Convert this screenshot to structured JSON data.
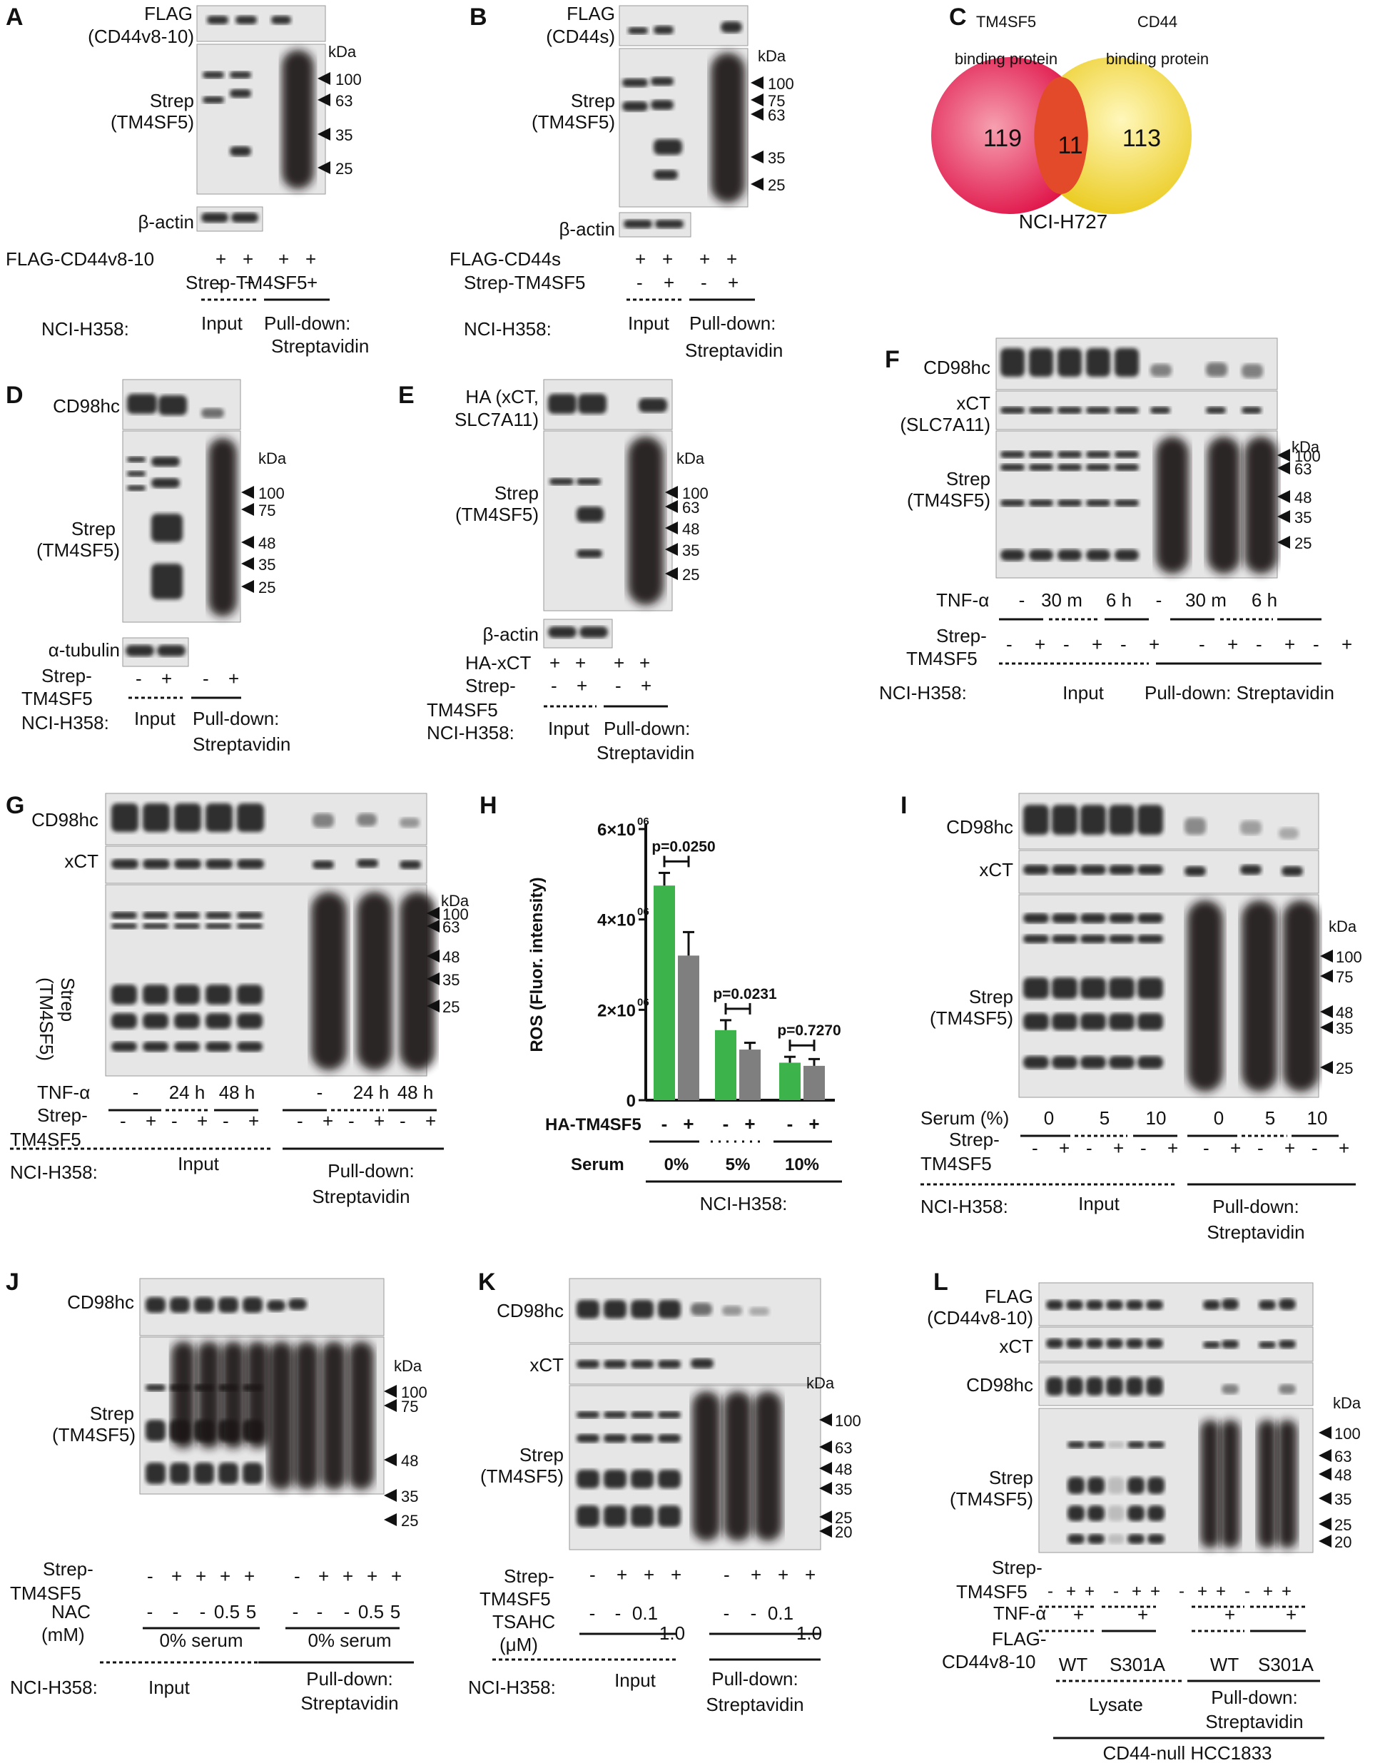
{
  "panelA": {
    "letter": "A",
    "flag": "FLAG",
    "flag2": "(CD44v8-10)",
    "strep": "Strep",
    "strep2": "(TM4SF5)",
    "kda": "kDa",
    "markers": [
      "100",
      "63",
      "35",
      "25"
    ],
    "loading": "β-actin",
    "row1": "FLAG-CD44v8-10",
    "row2": "Strep-TM4SF5",
    "cell": "NCI-H358:",
    "input": "Input",
    "pd": "Pull-down:",
    "sa": "Streptavidin"
  },
  "panelB": {
    "letter": "B",
    "flag": "FLAG",
    "flag2": "(CD44s)",
    "strep": "Strep",
    "strep2": "(TM4SF5)",
    "kda": "kDa",
    "markers": [
      "100",
      "75",
      "63",
      "35",
      "25"
    ],
    "loading": "β-actin",
    "row1": "FLAG-CD44s",
    "row2": "Strep-TM4SF5",
    "cell": "NCI-H358:",
    "input": "Input",
    "pd": "Pull-down:",
    "sa": "Streptavidin"
  },
  "panelC": {
    "letter": "C",
    "left_title1": "TM4SF5",
    "left_title2": "binding protein",
    "right_title1": "CD44",
    "right_title2": "binding protein",
    "left_n": "119",
    "mid_n": "11",
    "right_n": "113",
    "cell": "NCI-H727"
  },
  "panelD": {
    "letter": "D",
    "cd98": "CD98hc",
    "strep": "Strep",
    "strep2": "(TM4SF5)",
    "kda": "kDa",
    "markers": [
      "100",
      "75",
      "48",
      "35",
      "25"
    ],
    "loading": "α-tubulin",
    "row1a": "Strep-",
    "row1b": "TM4SF5",
    "cell": "NCI-H358:",
    "input": "Input",
    "pd": "Pull-down:",
    "sa": "Streptavidin"
  },
  "panelE": {
    "letter": "E",
    "ha": "HA (xCT,",
    "ha2": "SLC7A11)",
    "strep": "Strep",
    "strep2": "(TM4SF5)",
    "kda": "kDa",
    "markers": [
      "100",
      "63",
      "48",
      "35",
      "25"
    ],
    "loading": "β-actin",
    "row1": "HA-xCT",
    "row2a": "Strep-",
    "row2b": "TM4SF5",
    "cell": "NCI-H358:",
    "input": "Input",
    "pd": "Pull-down:",
    "sa": "Streptavidin"
  },
  "panelF": {
    "letter": "F",
    "cd98": "CD98hc",
    "xct": "xCT",
    "xct2": "(SLC7A11)",
    "strep": "Strep",
    "strep2": "(TM4SF5)",
    "kda": "kDa",
    "markers": [
      "100",
      "63",
      "48",
      "35",
      "25"
    ],
    "tnf": "TNF-α",
    "times": [
      "-",
      "30 m",
      "6 h",
      "-",
      "30 m",
      "6 h"
    ],
    "row2a": "Strep-",
    "row2b": "TM4SF5",
    "cell": "NCI-H358:",
    "input": "Input",
    "pd": "Pull-down: Streptavidin"
  },
  "panelG": {
    "letter": "G",
    "cd98": "CD98hc",
    "xct": "xCT",
    "strep": "Strep",
    "strep2": "(TM4SF5)",
    "kda": "kDa",
    "markers": [
      "100",
      "63",
      "48",
      "35",
      "25"
    ],
    "tnf": "TNF-α",
    "times": [
      "-",
      "24 h",
      "48 h",
      "-",
      "24 h",
      "48 h"
    ],
    "row2a": "Strep-",
    "row2b": "TM4SF5",
    "cell": "NCI-H358:",
    "input": "Input",
    "pd": "Pull-down:",
    "sa": "Streptavidin"
  },
  "panelI": {
    "letter": "I",
    "cd98": "CD98hc",
    "xct": "xCT",
    "strep": "Strep",
    "strep2": "(TM4SF5)",
    "kda": "kDa",
    "markers": [
      "100",
      "75",
      "48",
      "35",
      "25"
    ],
    "serum": "Serum (%)",
    "levels": [
      "0",
      "5",
      "10",
      "0",
      "5",
      "10"
    ],
    "row2a": "Strep-",
    "row2b": "TM4SF5",
    "cell": "NCI-H358:",
    "input": "Input",
    "pd": "Pull-down:",
    "sa": "Streptavidin"
  },
  "panelJ": {
    "letter": "J",
    "cd98": "CD98hc",
    "strep": "Strep",
    "strep2": "(TM4SF5)",
    "kda": "kDa",
    "markers": [
      "100",
      "75",
      "48",
      "35",
      "25"
    ],
    "row1a": "Strep-",
    "row1b": "TM4SF5",
    "nac": "NAC",
    "nac2": "(mM)",
    "doses": [
      "-",
      "-",
      "-",
      "0.5",
      "5",
      "-",
      "-",
      "-",
      "0.5",
      "5"
    ],
    "serum": "0% serum",
    "cell": "NCI-H358:",
    "input": "Input",
    "pd": "Pull-down:",
    "sa": "Streptavidin"
  },
  "panelK": {
    "letter": "K",
    "cd98": "CD98hc",
    "xct": "xCT",
    "strep": "Strep",
    "strep2": "(TM4SF5)",
    "kda": "kDa",
    "markers": [
      "100",
      "63",
      "48",
      "35",
      "25",
      "20"
    ],
    "row1a": "Strep-",
    "row1b": "TM4SF5",
    "tsahc": "TSAHC",
    "tsahc2": "(μM)",
    "doses": [
      "-",
      "-",
      "0.1",
      "1.0",
      "-",
      "-",
      "0.1",
      "1.0"
    ],
    "cell": "NCI-H358:",
    "input": "Input",
    "pd": "Pull-down:",
    "sa": "Streptavidin"
  },
  "panelL": {
    "letter": "L",
    "flag": "FLAG",
    "flag2": "(CD44v8-10)",
    "xct": "xCT",
    "cd98": "CD98hc",
    "strep": "Strep",
    "strep2": "(TM4SF5)",
    "kda": "kDa",
    "markers": [
      "100",
      "63",
      "48",
      "35",
      "25",
      "20"
    ],
    "row1a": "Strep-",
    "row1b": "TM4SF5",
    "tnf": "TNF-α",
    "flag_row1": "FLAG-",
    "flag_row2": "CD44v8-10",
    "wt": "WT",
    "mut": "S301A",
    "lysate": "Lysate",
    "pd": "Pull-down:",
    "sa": "Streptavidin",
    "cell": "CD44-null HCC1833"
  },
  "chart_data": {
    "type": "bar",
    "panel": "H",
    "ylabel": "ROS (Fluor. intensity)",
    "yticks": [
      "0",
      "2×10",
      "4×10",
      "6×10"
    ],
    "ytick_exp": "06",
    "ylim": [
      0,
      6000000
    ],
    "categories": [
      "0%",
      "5%",
      "10%"
    ],
    "group_label": "Serum",
    "treat_label": "HA-TM4SF5",
    "treat_marks": [
      "-",
      "+"
    ],
    "cell": "NCI-H358:",
    "series": [
      {
        "values": [
          4750000,
          1550000,
          830000
        ],
        "errors": [
          280000,
          220000,
          130000
        ],
        "color": "#3cb44b"
      },
      {
        "values": [
          3200000,
          1120000,
          760000
        ],
        "errors": [
          520000,
          150000,
          150000
        ],
        "color": "#7f7f7f"
      }
    ],
    "pvalues": [
      "p=0.0250",
      "p=0.0231",
      "p=0.7270"
    ]
  }
}
